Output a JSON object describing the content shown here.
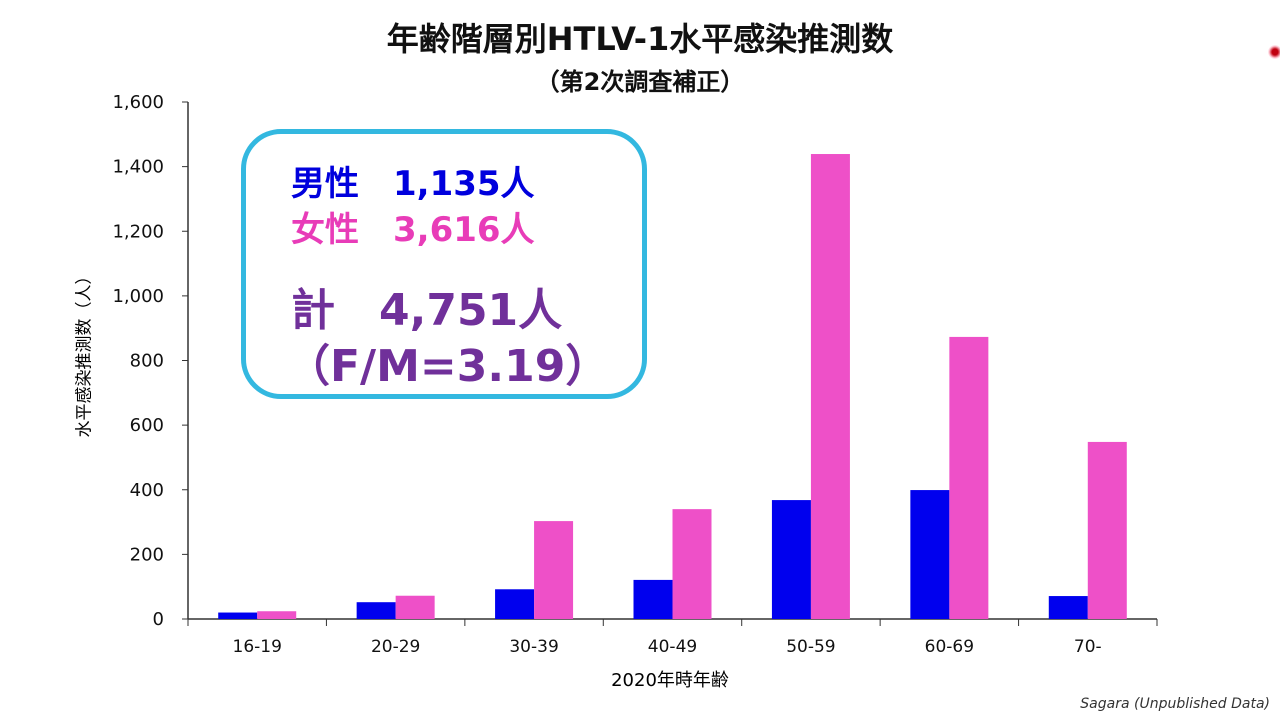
{
  "chart_data": {
    "type": "bar",
    "title": "年齢階層別HTLV-1水平感染推測数",
    "subtitle": "（第2次調査補正）",
    "xlabel": "2020年時年齢",
    "ylabel": "水平感染推測数（人）",
    "ylim": [
      0,
      1600
    ],
    "yticks": [
      "0",
      "200",
      "400",
      "600",
      "800",
      "1,000",
      "1,200",
      "1,400",
      "1,600"
    ],
    "ytick_values": [
      0,
      200,
      400,
      600,
      800,
      1000,
      1200,
      1400,
      1600
    ],
    "categories": [
      "16-19",
      "20-29",
      "30-39",
      "40-49",
      "50-59",
      "60-69",
      "70-"
    ],
    "series": [
      {
        "name": "男性",
        "color": "#0000ee",
        "values": [
          20,
          52,
          92,
          121,
          368,
          399,
          71
        ]
      },
      {
        "name": "女性",
        "color": "#ee50c8",
        "values": [
          24,
          72,
          303,
          340,
          1439,
          873,
          548
        ]
      }
    ],
    "grid": false
  },
  "summary": {
    "male": "男性　1,135人",
    "female": "女性　3,616人",
    "total": "計　4,751人",
    "ratio": "（F/M=3.19）"
  },
  "source": "Sagara (Unpublished Data)"
}
